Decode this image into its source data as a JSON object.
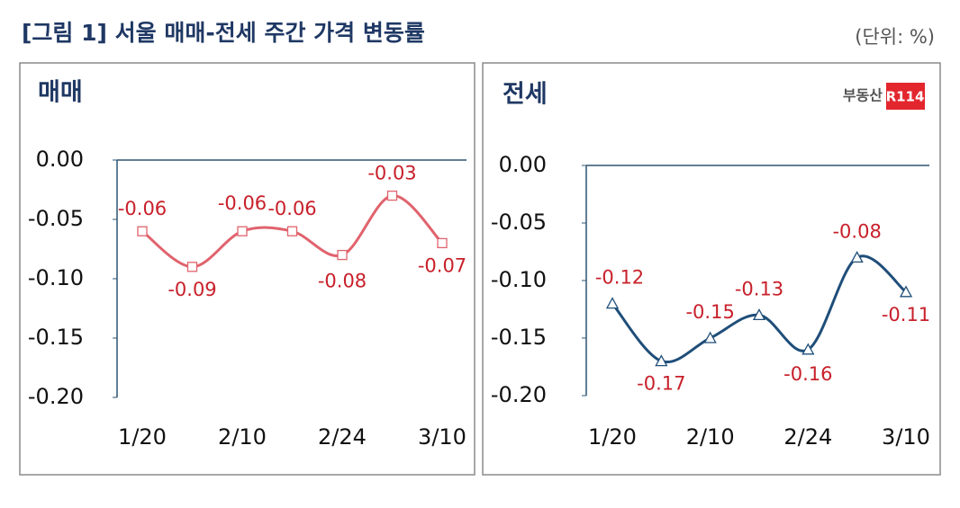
{
  "title": "[그림 1] 서울 매매-전세 주간 가격 변동률",
  "unit": "(단위: %)",
  "logo": {
    "name": "부동산",
    "mark": "R114"
  },
  "chart_data": [
    {
      "type": "line",
      "title": "매매",
      "categories": [
        "1/20",
        null,
        "2/10",
        null,
        "2/24",
        null,
        "3/10"
      ],
      "series": [
        {
          "name": "매매",
          "color": "#e0636d",
          "marker": "square",
          "values": [
            -0.06,
            -0.09,
            -0.06,
            -0.06,
            -0.08,
            -0.03,
            -0.07
          ]
        }
      ],
      "ylim": [
        -0.2,
        0
      ],
      "yticks": [
        {
          "value": 0,
          "label": "0.00"
        },
        -0.05,
        {
          "value": -0.1,
          "label": "-0.10"
        },
        -0.15,
        {
          "value": -0.2,
          "label": "-0.20"
        }
      ]
    },
    {
      "type": "line",
      "title": "전세",
      "categories": [
        "1/20",
        null,
        "2/10",
        null,
        "2/24",
        null,
        "3/10"
      ],
      "series": [
        {
          "name": "전세",
          "color": "#1f4e79",
          "marker": "triangle",
          "values": [
            -0.12,
            -0.17,
            -0.15,
            -0.13,
            -0.16,
            -0.08,
            -0.11
          ]
        }
      ],
      "ylim": [
        -0.2,
        0
      ],
      "yticks": [
        {
          "value": 0,
          "label": "0.00"
        },
        -0.05,
        {
          "value": -0.1,
          "label": "-0.10"
        },
        -0.15,
        {
          "value": -0.2,
          "label": "-0.20"
        }
      ]
    }
  ]
}
